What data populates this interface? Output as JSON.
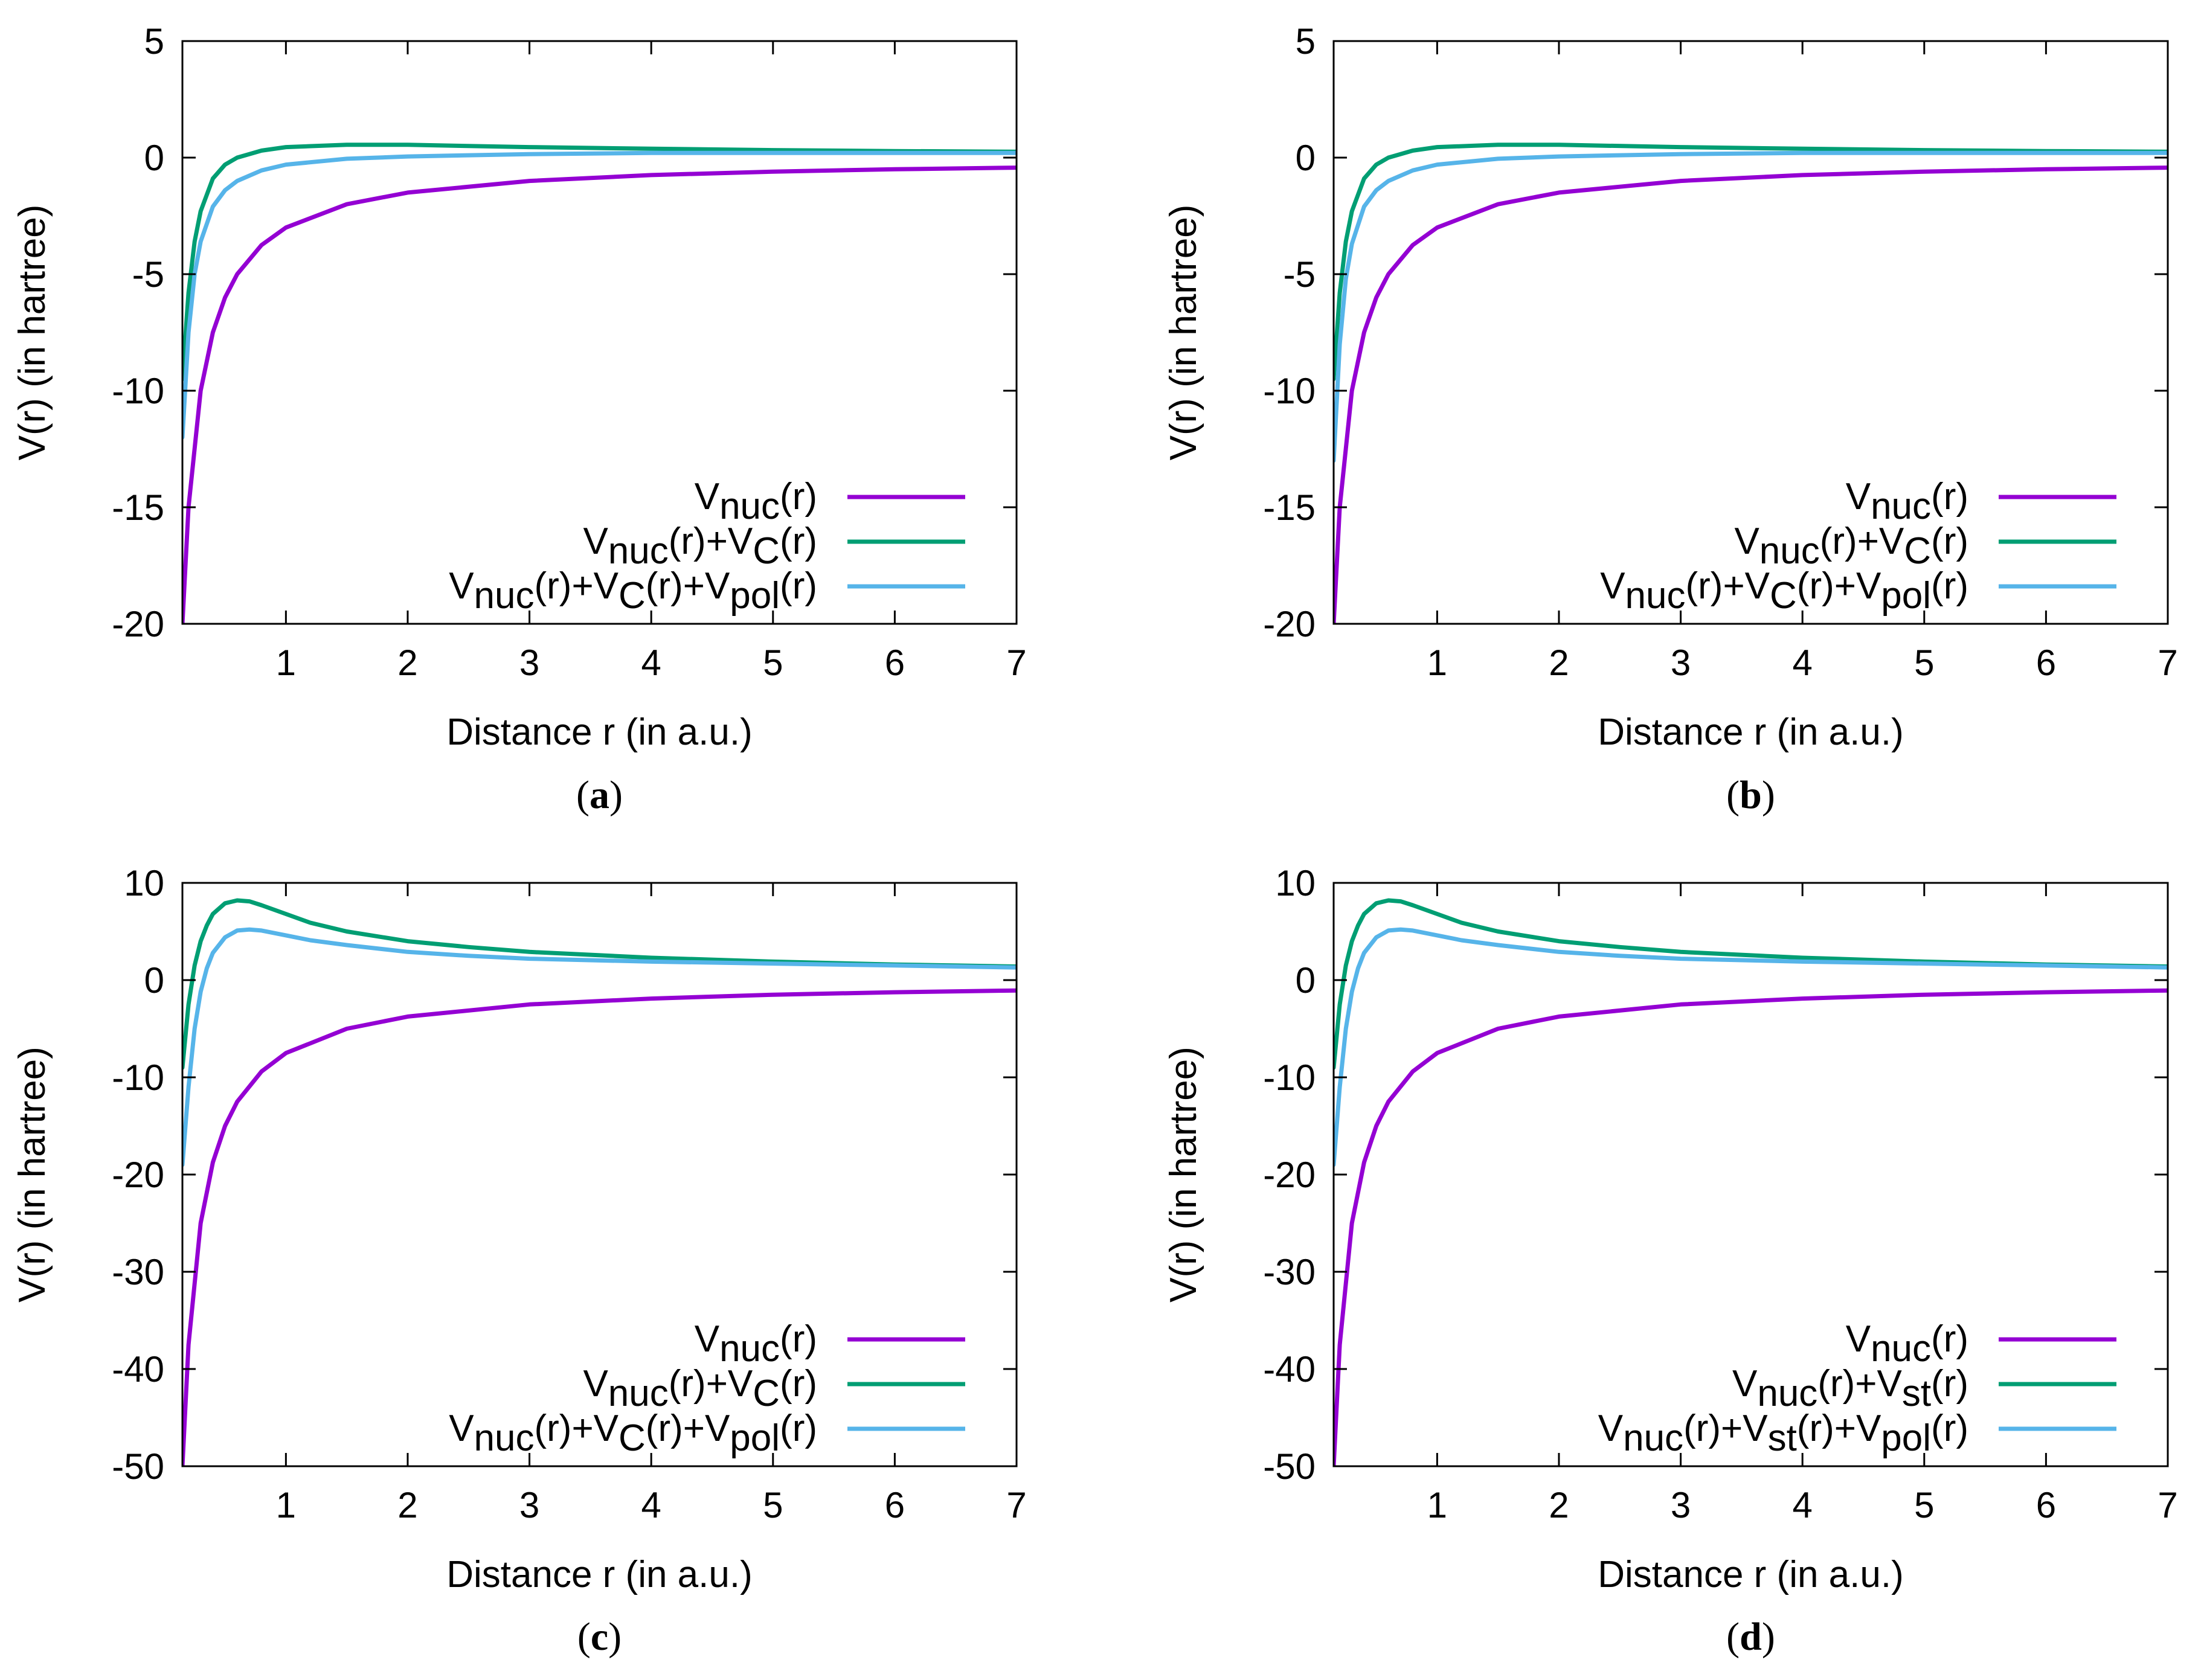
{
  "colors": {
    "nuc": "#9400d3",
    "coulomb": "#009e73",
    "polarization": "#56b4e9",
    "axis": "#000000",
    "background": "#ffffff"
  },
  "chart_data": [
    {
      "panel": "a",
      "caption": "a",
      "type": "line",
      "xlabel": "Distance r (in a.u.)",
      "ylabel": "V(r) (in hartree)",
      "xlim": [
        0.15,
        7
      ],
      "ylim": [
        -20,
        5
      ],
      "xticks": [
        1,
        2,
        3,
        4,
        5,
        6,
        7
      ],
      "yticks": [
        -20,
        -15,
        -10,
        -5,
        0,
        5
      ],
      "legend_position": "bottom-right",
      "series": [
        {
          "name": "Vnuc(r)",
          "color_key": "nuc",
          "legend": [
            [
              "V",
              "base"
            ],
            [
              "nuc",
              "sub"
            ],
            [
              "(r)",
              "base"
            ]
          ],
          "x": [
            0.15,
            0.2,
            0.3,
            0.4,
            0.5,
            0.6,
            0.8,
            1.0,
            1.5,
            2.0,
            3.0,
            4.0,
            5.0,
            6.0,
            7.0
          ],
          "values": [
            -20,
            -15,
            -10,
            -7.5,
            -6,
            -5,
            -3.75,
            -3,
            -2,
            -1.5,
            -1,
            -0.75,
            -0.6,
            -0.5,
            -0.43
          ]
        },
        {
          "name": "Vnuc(r)+VC(r)",
          "color_key": "coulomb",
          "legend": [
            [
              "V",
              "base"
            ],
            [
              "nuc",
              "sub"
            ],
            [
              "(r)+V",
              "base"
            ],
            [
              "C",
              "sub"
            ],
            [
              "(r)",
              "base"
            ]
          ],
          "x": [
            0.15,
            0.2,
            0.25,
            0.3,
            0.4,
            0.5,
            0.6,
            0.8,
            1.0,
            1.5,
            2.0,
            3.0,
            4.0,
            5.0,
            6.0,
            7.0
          ],
          "values": [
            -9.5,
            -5.8,
            -3.6,
            -2.3,
            -0.9,
            -0.3,
            0.0,
            0.3,
            0.45,
            0.55,
            0.55,
            0.45,
            0.38,
            0.32,
            0.28,
            0.25
          ]
        },
        {
          "name": "Vnuc(r)+VC(r)+Vpol(r)",
          "color_key": "polarization",
          "legend": [
            [
              "V",
              "base"
            ],
            [
              "nuc",
              "sub"
            ],
            [
              "(r)+V",
              "base"
            ],
            [
              "C",
              "sub"
            ],
            [
              "(r)+V",
              "base"
            ],
            [
              "pol",
              "sub"
            ],
            [
              "(r)",
              "base"
            ]
          ],
          "x": [
            0.15,
            0.2,
            0.25,
            0.3,
            0.4,
            0.5,
            0.6,
            0.8,
            1.0,
            1.5,
            2.0,
            3.0,
            4.0,
            5.0,
            6.0,
            7.0
          ],
          "values": [
            -12,
            -7.5,
            -5.0,
            -3.6,
            -2.1,
            -1.4,
            -1.0,
            -0.55,
            -0.3,
            -0.05,
            0.05,
            0.15,
            0.2,
            0.2,
            0.2,
            0.2
          ]
        }
      ]
    },
    {
      "panel": "b",
      "caption": "b",
      "type": "line",
      "xlabel": "Distance r (in a.u.)",
      "ylabel": "V(r) (in hartree)",
      "xlim": [
        0.15,
        7
      ],
      "ylim": [
        -20,
        5
      ],
      "xticks": [
        1,
        2,
        3,
        4,
        5,
        6,
        7
      ],
      "yticks": [
        -20,
        -15,
        -10,
        -5,
        0,
        5
      ],
      "legend_position": "bottom-right",
      "series": [
        {
          "name": "Vnuc(r)",
          "color_key": "nuc",
          "legend": [
            [
              "V",
              "base"
            ],
            [
              "nuc",
              "sub"
            ],
            [
              "(r)",
              "base"
            ]
          ],
          "x": [
            0.15,
            0.2,
            0.3,
            0.4,
            0.5,
            0.6,
            0.8,
            1.0,
            1.5,
            2.0,
            3.0,
            4.0,
            5.0,
            6.0,
            7.0
          ],
          "values": [
            -20,
            -15,
            -10,
            -7.5,
            -6,
            -5,
            -3.75,
            -3,
            -2,
            -1.5,
            -1,
            -0.75,
            -0.6,
            -0.5,
            -0.43
          ]
        },
        {
          "name": "Vnuc(r)+VC(r)",
          "color_key": "coulomb",
          "legend": [
            [
              "V",
              "base"
            ],
            [
              "nuc",
              "sub"
            ],
            [
              "(r)+V",
              "base"
            ],
            [
              "C",
              "sub"
            ],
            [
              "(r)",
              "base"
            ]
          ],
          "x": [
            0.15,
            0.2,
            0.25,
            0.3,
            0.4,
            0.5,
            0.6,
            0.8,
            1.0,
            1.5,
            2.0,
            3.0,
            4.0,
            5.0,
            6.0,
            7.0
          ],
          "values": [
            -9.5,
            -5.8,
            -3.6,
            -2.3,
            -0.9,
            -0.3,
            0.0,
            0.3,
            0.45,
            0.55,
            0.55,
            0.45,
            0.38,
            0.32,
            0.28,
            0.25
          ]
        },
        {
          "name": "Vnuc(r)+VC(r)+Vpol(r)",
          "color_key": "polarization",
          "legend": [
            [
              "V",
              "base"
            ],
            [
              "nuc",
              "sub"
            ],
            [
              "(r)+V",
              "base"
            ],
            [
              "C",
              "sub"
            ],
            [
              "(r)+V",
              "base"
            ],
            [
              "pol",
              "sub"
            ],
            [
              "(r)",
              "base"
            ]
          ],
          "x": [
            0.15,
            0.2,
            0.25,
            0.3,
            0.4,
            0.5,
            0.6,
            0.8,
            1.0,
            1.5,
            2.0,
            3.0,
            4.0,
            5.0,
            6.0,
            7.0
          ],
          "values": [
            -13,
            -8.0,
            -5.2,
            -3.7,
            -2.1,
            -1.4,
            -1.0,
            -0.55,
            -0.3,
            -0.05,
            0.05,
            0.15,
            0.2,
            0.2,
            0.2,
            0.2
          ]
        }
      ]
    },
    {
      "panel": "c",
      "caption": "c",
      "type": "line",
      "xlabel": "Distance r (in a.u.)",
      "ylabel": "V(r) (in hartree)",
      "xlim": [
        0.15,
        7
      ],
      "ylim": [
        -50,
        10
      ],
      "xticks": [
        1,
        2,
        3,
        4,
        5,
        6,
        7
      ],
      "yticks": [
        -50,
        -40,
        -30,
        -20,
        -10,
        0,
        10
      ],
      "legend_position": "bottom-right",
      "series": [
        {
          "name": "Vnuc(r)",
          "color_key": "nuc",
          "legend": [
            [
              "V",
              "base"
            ],
            [
              "nuc",
              "sub"
            ],
            [
              "(r)",
              "base"
            ]
          ],
          "x": [
            0.15,
            0.2,
            0.3,
            0.4,
            0.5,
            0.6,
            0.8,
            1.0,
            1.5,
            2.0,
            3.0,
            4.0,
            5.0,
            6.0,
            7.0
          ],
          "values": [
            -50,
            -37.5,
            -25,
            -18.75,
            -15,
            -12.5,
            -9.4,
            -7.5,
            -5,
            -3.75,
            -2.5,
            -1.9,
            -1.5,
            -1.25,
            -1.07
          ]
        },
        {
          "name": "Vnuc(r)+VC(r)",
          "color_key": "coulomb",
          "legend": [
            [
              "V",
              "base"
            ],
            [
              "nuc",
              "sub"
            ],
            [
              "(r)+V",
              "base"
            ],
            [
              "C",
              "sub"
            ],
            [
              "(r)",
              "base"
            ]
          ],
          "x": [
            0.15,
            0.2,
            0.25,
            0.3,
            0.35,
            0.4,
            0.5,
            0.6,
            0.7,
            0.8,
            1.0,
            1.2,
            1.5,
            2.0,
            2.5,
            3.0,
            4.0,
            5.0,
            6.0,
            7.0
          ],
          "values": [
            -9,
            -2.5,
            1.5,
            4.0,
            5.6,
            6.8,
            7.9,
            8.2,
            8.1,
            7.7,
            6.8,
            5.9,
            5.0,
            4.0,
            3.4,
            2.9,
            2.3,
            1.9,
            1.6,
            1.4
          ]
        },
        {
          "name": "Vnuc(r)+VC(r)+Vpol(r)",
          "color_key": "polarization",
          "legend": [
            [
              "V",
              "base"
            ],
            [
              "nuc",
              "sub"
            ],
            [
              "(r)+V",
              "base"
            ],
            [
              "C",
              "sub"
            ],
            [
              "(r)+V",
              "base"
            ],
            [
              "pol",
              "sub"
            ],
            [
              "(r)",
              "base"
            ]
          ],
          "x": [
            0.15,
            0.2,
            0.25,
            0.3,
            0.35,
            0.4,
            0.5,
            0.6,
            0.7,
            0.8,
            1.0,
            1.2,
            1.5,
            2.0,
            2.5,
            3.0,
            4.0,
            5.0,
            6.0,
            7.0
          ],
          "values": [
            -19,
            -11,
            -5,
            -1.2,
            1.2,
            2.8,
            4.4,
            5.1,
            5.2,
            5.1,
            4.6,
            4.1,
            3.6,
            2.9,
            2.5,
            2.2,
            1.9,
            1.7,
            1.5,
            1.3
          ]
        }
      ]
    },
    {
      "panel": "d",
      "caption": "d",
      "type": "line",
      "xlabel": "Distance r (in a.u.)",
      "ylabel": "V(r) (in hartree)",
      "xlim": [
        0.15,
        7
      ],
      "ylim": [
        -50,
        10
      ],
      "xticks": [
        1,
        2,
        3,
        4,
        5,
        6,
        7
      ],
      "yticks": [
        -50,
        -40,
        -30,
        -20,
        -10,
        0,
        10
      ],
      "legend_position": "bottom-right",
      "series": [
        {
          "name": "Vnuc(r)",
          "color_key": "nuc",
          "legend": [
            [
              "V",
              "base"
            ],
            [
              "nuc",
              "sub"
            ],
            [
              "(r)",
              "base"
            ]
          ],
          "x": [
            0.15,
            0.2,
            0.3,
            0.4,
            0.5,
            0.6,
            0.8,
            1.0,
            1.5,
            2.0,
            3.0,
            4.0,
            5.0,
            6.0,
            7.0
          ],
          "values": [
            -50,
            -37.5,
            -25,
            -18.75,
            -15,
            -12.5,
            -9.4,
            -7.5,
            -5,
            -3.75,
            -2.5,
            -1.9,
            -1.5,
            -1.25,
            -1.07
          ]
        },
        {
          "name": "Vnuc(r)+Vst(r)",
          "color_key": "coulomb",
          "legend": [
            [
              "V",
              "base"
            ],
            [
              "nuc",
              "sub"
            ],
            [
              "(r)+V",
              "base"
            ],
            [
              "st",
              "sub"
            ],
            [
              "(r)",
              "base"
            ]
          ],
          "x": [
            0.15,
            0.2,
            0.25,
            0.3,
            0.35,
            0.4,
            0.5,
            0.6,
            0.7,
            0.8,
            1.0,
            1.2,
            1.5,
            2.0,
            2.5,
            3.0,
            4.0,
            5.0,
            6.0,
            7.0
          ],
          "values": [
            -9,
            -2.5,
            1.5,
            4.0,
            5.6,
            6.8,
            7.9,
            8.2,
            8.1,
            7.7,
            6.8,
            5.9,
            5.0,
            4.0,
            3.4,
            2.9,
            2.3,
            1.9,
            1.6,
            1.4
          ]
        },
        {
          "name": "Vnuc(r)+Vst(r)+Vpol(r)",
          "color_key": "polarization",
          "legend": [
            [
              "V",
              "base"
            ],
            [
              "nuc",
              "sub"
            ],
            [
              "(r)+V",
              "base"
            ],
            [
              "st",
              "sub"
            ],
            [
              "(r)+V",
              "base"
            ],
            [
              "pol",
              "sub"
            ],
            [
              "(r)",
              "base"
            ]
          ],
          "x": [
            0.15,
            0.2,
            0.25,
            0.3,
            0.35,
            0.4,
            0.5,
            0.6,
            0.7,
            0.8,
            1.0,
            1.2,
            1.5,
            2.0,
            2.5,
            3.0,
            4.0,
            5.0,
            6.0,
            7.0
          ],
          "values": [
            -19,
            -11,
            -5,
            -1.2,
            1.2,
            2.8,
            4.4,
            5.1,
            5.2,
            5.1,
            4.6,
            4.1,
            3.6,
            2.9,
            2.5,
            2.2,
            1.9,
            1.7,
            1.5,
            1.3
          ]
        }
      ]
    }
  ]
}
